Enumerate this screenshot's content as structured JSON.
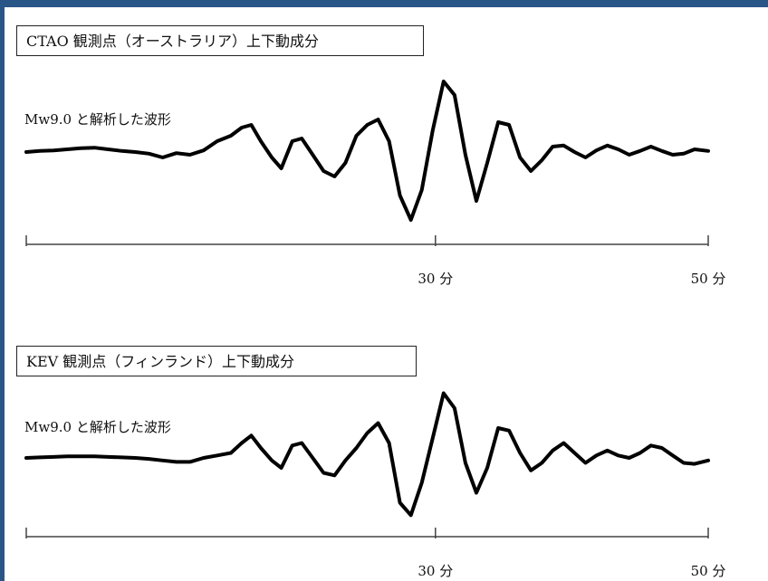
{
  "chart_data": [
    {
      "type": "line",
      "title": "CTAO 観測点（オーストラリア）上下動成分",
      "series": [
        {
          "name": "Mw9.0 と解析した波形",
          "x": [
            0,
            1,
            2,
            3,
            4,
            5,
            6,
            7,
            8,
            9,
            10,
            11,
            12,
            13,
            14,
            15,
            15.8,
            16.5,
            17.2,
            18,
            18.7,
            19.5,
            20.2,
            21,
            21.8,
            22.6,
            23.4,
            24.2,
            25,
            25.8,
            26.6,
            27.4,
            28.2,
            29,
            29.8,
            30.6,
            31.4,
            32.2,
            33,
            33.8,
            34.6,
            35.4,
            36.2,
            37,
            37.8,
            38.6,
            39.4,
            40.2,
            41,
            41.8,
            42.6,
            43.4,
            44.2,
            45,
            45.8,
            46.6,
            47.4,
            48.2,
            49,
            50
          ],
          "y": [
            0,
            0.02,
            0.03,
            0.05,
            0.07,
            0.08,
            0.05,
            0.02,
            0.0,
            -0.03,
            -0.1,
            -0.02,
            -0.05,
            0.03,
            0.2,
            0.3,
            0.45,
            0.5,
            0.2,
            -0.1,
            -0.3,
            0.2,
            0.25,
            -0.05,
            -0.35,
            -0.45,
            -0.2,
            0.3,
            0.5,
            0.6,
            0.2,
            -0.8,
            -1.25,
            -0.7,
            0.4,
            1.3,
            1.05,
            -0.05,
            -0.9,
            -0.2,
            0.55,
            0.5,
            -0.1,
            -0.35,
            -0.15,
            0.1,
            0.12,
            0.0,
            -0.1,
            0.03,
            0.12,
            0.05,
            -0.05,
            0.02,
            0.1,
            0.02,
            -0.05,
            -0.03,
            0.05,
            0.02
          ]
        }
      ],
      "xlim": [
        0,
        50
      ],
      "ylim": [
        -1.4,
        1.4
      ],
      "ticks": [
        0,
        30,
        50
      ],
      "tick_labels": [
        "",
        "30 分",
        "50 分"
      ]
    },
    {
      "type": "line",
      "title": "KEV 観測点（フィンランド）上下動成分",
      "series": [
        {
          "name": "Mw9.0 と解析した波形",
          "x": [
            0,
            1,
            2,
            3,
            4,
            5,
            6,
            7,
            8,
            9,
            10,
            11,
            12,
            13,
            14,
            15,
            15.8,
            16.5,
            17.2,
            18,
            18.7,
            19.5,
            20.2,
            21,
            21.8,
            22.6,
            23.4,
            24.2,
            25,
            25.8,
            26.6,
            27.4,
            28.2,
            29,
            29.8,
            30.6,
            31.4,
            32.2,
            33,
            33.8,
            34.6,
            35.4,
            36.2,
            37,
            37.8,
            38.6,
            39.4,
            40.2,
            41,
            41.8,
            42.6,
            43.4,
            44.2,
            45,
            45.8,
            46.6,
            47.4,
            48.2,
            49,
            50
          ],
          "y": [
            0,
            0.01,
            0.02,
            0.03,
            0.03,
            0.03,
            0.02,
            0.01,
            0.0,
            -0.02,
            -0.05,
            -0.08,
            -0.08,
            0.0,
            0.05,
            0.1,
            0.3,
            0.45,
            0.2,
            -0.05,
            -0.2,
            0.25,
            0.3,
            0.0,
            -0.3,
            -0.35,
            -0.05,
            0.2,
            0.5,
            0.7,
            0.3,
            -0.9,
            -1.15,
            -0.5,
            0.4,
            1.3,
            1.0,
            -0.1,
            -0.7,
            -0.2,
            0.6,
            0.55,
            0.1,
            -0.25,
            -0.1,
            0.15,
            0.3,
            0.1,
            -0.1,
            0.05,
            0.15,
            0.05,
            0.0,
            0.1,
            0.25,
            0.2,
            0.05,
            -0.1,
            -0.12,
            -0.05
          ]
        }
      ],
      "xlim": [
        0,
        50
      ],
      "ylim": [
        -1.4,
        1.4
      ],
      "ticks": [
        0,
        30,
        50
      ],
      "tick_labels": [
        "",
        "30 分",
        "50 分"
      ]
    }
  ]
}
